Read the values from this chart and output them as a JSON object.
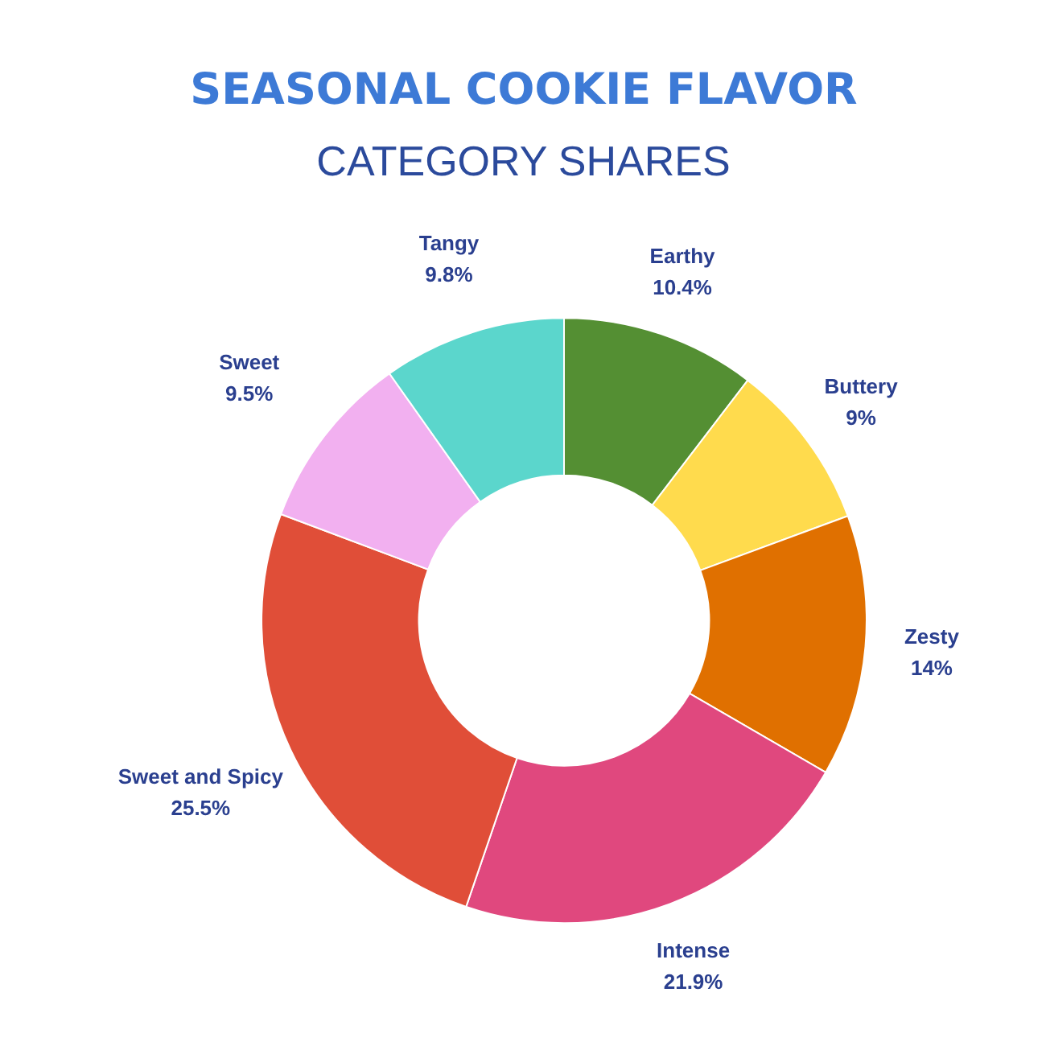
{
  "chart_data": {
    "type": "donut",
    "title": "SEASONAL COOKIE FLAVOR",
    "subtitle": "CATEGORY SHARES",
    "categories": [
      "Earthy",
      "Buttery",
      "Zesty",
      "Intense",
      "Sweet and Spicy",
      "Sweet",
      "Tangy"
    ],
    "values": [
      10.4,
      9,
      14,
      21.9,
      25.5,
      9.5,
      9.8
    ],
    "colors": [
      "#548f33",
      "#ffdb4d",
      "#e07000",
      "#e0487e",
      "#e04e38",
      "#f2b0f0",
      "#5bd6cc"
    ],
    "value_labels": [
      "10.4%",
      "9%",
      "14%",
      "21.9%",
      "25.5%",
      "9.5%",
      "9.8%"
    ]
  }
}
